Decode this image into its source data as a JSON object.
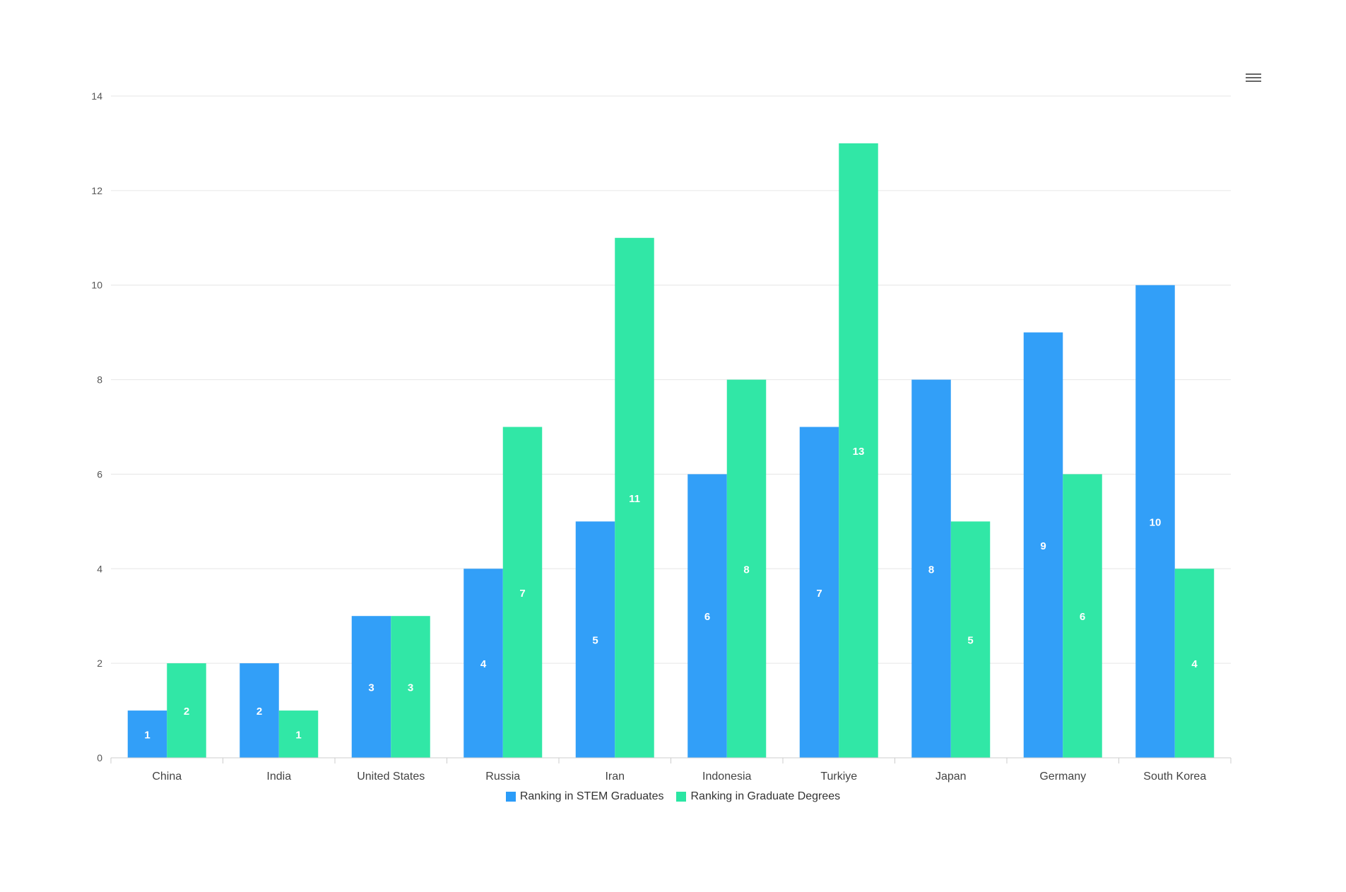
{
  "colors": {
    "series_1": "#2b9cf8",
    "series_2": "#2ae6a3",
    "grid": "#e6e6e6",
    "axis_text": "#555555",
    "label_text": "#ffffff"
  },
  "toolbar": {
    "menu_icon": "hamburger-menu-icon"
  },
  "chart_data": {
    "type": "bar",
    "title": "",
    "xlabel": "",
    "ylabel": "",
    "categories": [
      "China",
      "India",
      "United States",
      "Russia",
      "Iran",
      "Indonesia",
      "Turkiye",
      "Japan",
      "Germany",
      "South Korea"
    ],
    "series": [
      {
        "name": "Ranking in STEM Graduates",
        "values": [
          1,
          2,
          3,
          4,
          5,
          6,
          7,
          8,
          9,
          10
        ]
      },
      {
        "name": "Ranking in Graduate Degrees",
        "values": [
          2,
          1,
          3,
          7,
          11,
          8,
          13,
          5,
          6,
          4
        ]
      }
    ],
    "ylim": [
      0,
      14
    ],
    "yticks": [
      0,
      2,
      4,
      6,
      8,
      10,
      12,
      14
    ],
    "grid": true,
    "legend": "bottom-center",
    "data_labels": true
  }
}
